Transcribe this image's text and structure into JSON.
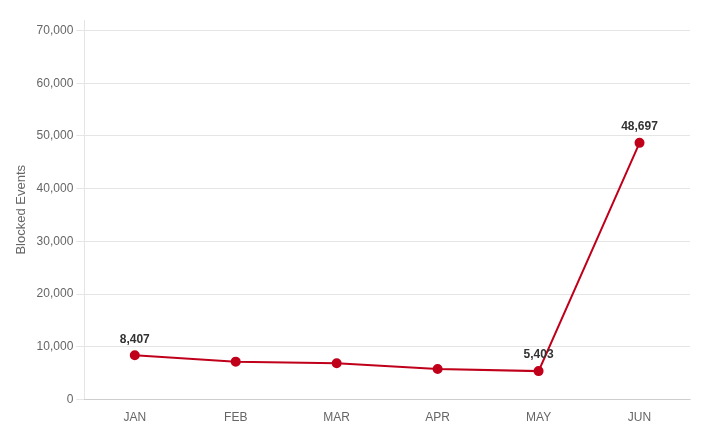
{
  "chart_data": {
    "type": "line",
    "ylabel": "Blocked Events",
    "categories": [
      "JAN",
      "FEB",
      "MAR",
      "APR",
      "MAY",
      "JUN"
    ],
    "values": [
      8407,
      7200,
      6900,
      5800,
      5403,
      48697
    ],
    "color": "#c0001a",
    "marker": "circle",
    "ylim": [
      0,
      72000
    ],
    "yticks": [
      0,
      {
        "value": 10000,
        "label": "10,000"
      },
      {
        "value": 20000,
        "label": "20,000"
      },
      {
        "value": 30000,
        "label": "30,000"
      },
      {
        "value": 40000,
        "label": "40,000"
      },
      {
        "value": 50000,
        "label": "50,000"
      },
      {
        "value": 60000,
        "label": "60,000"
      },
      {
        "value": 70000,
        "label": "70,000"
      }
    ],
    "grid": true,
    "annotations": [
      {
        "category": "JAN",
        "value": 8407,
        "label": "8,407"
      },
      {
        "category": "MAY",
        "value": 5403,
        "label": "5,403"
      },
      {
        "category": "JUN",
        "value": 48697,
        "label": "48,697"
      }
    ]
  }
}
